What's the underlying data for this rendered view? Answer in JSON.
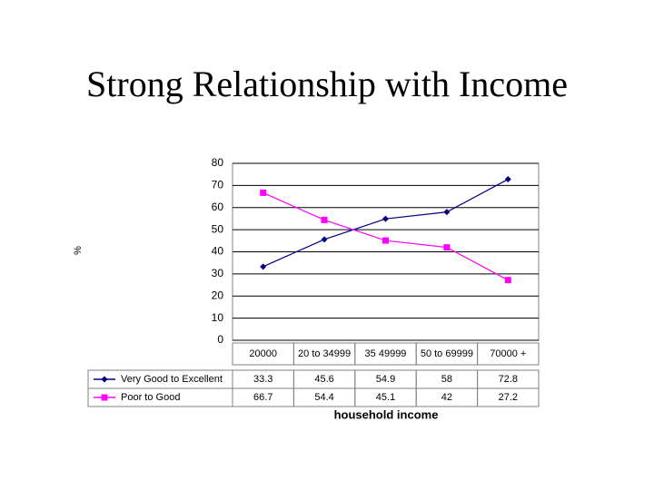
{
  "chart_data": {
    "type": "line",
    "title": "Strong Relationship with Income",
    "y_label": "%",
    "x_label": "household income",
    "categories": [
      "20000",
      "20 to 34999",
      "35 49999",
      "50 to 69999",
      "70000 +"
    ],
    "series": [
      {
        "name": "Very Good to Excellent",
        "color": "#000080",
        "marker": "diamond",
        "values": [
          33.3,
          45.6,
          54.9,
          58,
          72.8
        ]
      },
      {
        "name": "Poor to Good",
        "color": "#ff00ff",
        "marker": "square",
        "values": [
          66.7,
          54.4,
          45.1,
          42,
          27.2
        ]
      }
    ],
    "ylim": [
      0,
      80
    ],
    "yticks": [
      0,
      10,
      20,
      30,
      40,
      50,
      60,
      70,
      80
    ],
    "grid": true,
    "data_table": true
  }
}
